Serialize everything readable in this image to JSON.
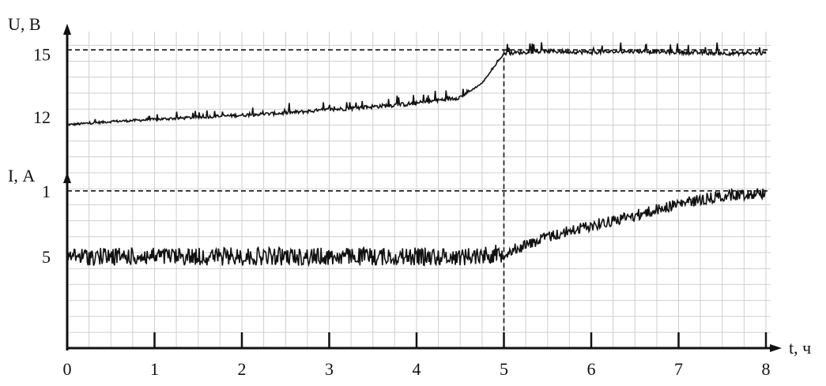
{
  "chart_data": {
    "type": "line",
    "xlabel": "t, ч",
    "x_ticks": [
      "0",
      "1",
      "2",
      "3",
      "4",
      "5",
      "6",
      "7",
      "8"
    ],
    "xlim": [
      0,
      8
    ],
    "voltage": {
      "ylabel": "U, В",
      "y_ticks": [
        {
          "value": 12,
          "label": "12"
        },
        {
          "value": 15,
          "label": "15"
        }
      ],
      "series": {
        "x": [
          0,
          0.5,
          1,
          1.5,
          2,
          2.5,
          3,
          3.5,
          4,
          4.5,
          4.75,
          5,
          5.5,
          6,
          6.5,
          7,
          7.5,
          8
        ],
        "y": [
          11.6,
          11.75,
          11.85,
          11.95,
          12.05,
          12.15,
          12.3,
          12.45,
          12.6,
          12.9,
          13.6,
          15.0,
          15.1,
          15.05,
          15.1,
          15.05,
          15.0,
          15.0
        ]
      },
      "reference_line": {
        "y": 15.2,
        "x_end": 5
      }
    },
    "current": {
      "ylabel": "I, А",
      "y_ticks": [
        {
          "value": 1,
          "label": "1"
        },
        {
          "value": 5,
          "label": "5"
        }
      ],
      "series": {
        "x": [
          0,
          0.5,
          1,
          1.5,
          2,
          2.5,
          3,
          3.5,
          4,
          4.5,
          5,
          5.5,
          6,
          6.5,
          7,
          7.5,
          8
        ],
        "y": [
          5.0,
          5.0,
          5.0,
          5.0,
          5.0,
          5.0,
          5.0,
          5.0,
          5.0,
          5.0,
          4.8,
          3.8,
          3.1,
          2.5,
          1.8,
          1.3,
          1.1
        ]
      },
      "reference_line": {
        "y": 1
      }
    },
    "vertical_marker_x": 5,
    "grid": true,
    "colors": {
      "line": "#111111",
      "grid": "#cfcfcf"
    }
  }
}
